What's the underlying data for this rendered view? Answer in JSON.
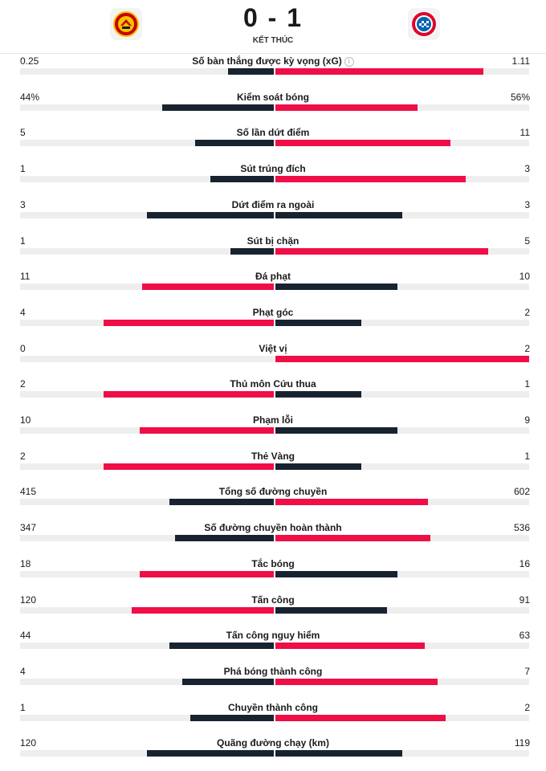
{
  "match": {
    "score": "0 - 1",
    "status": "KẾT THÚC",
    "home_color": "#c70101",
    "away_color": "#dc052d"
  },
  "colors": {
    "lead": "#ef0e46",
    "trail": "#182330",
    "track": "#eeeeee"
  },
  "stats": [
    {
      "label": "Số bàn thắng được kỳ vọng (xG)",
      "home": "0.25",
      "away": "1.11",
      "home_frac": 0.18,
      "away_frac": 0.82,
      "info": true
    },
    {
      "label": "Kiểm soát bóng",
      "home": "44%",
      "away": "56%",
      "home_frac": 0.44,
      "away_frac": 0.56
    },
    {
      "label": "Số lần dứt điểm",
      "home": "5",
      "away": "11",
      "home_frac": 0.31,
      "away_frac": 0.69
    },
    {
      "label": "Sút trúng đích",
      "home": "1",
      "away": "3",
      "home_frac": 0.25,
      "away_frac": 0.75
    },
    {
      "label": "Dứt điểm ra ngoài",
      "home": "3",
      "away": "3",
      "home_frac": 0.5,
      "away_frac": 0.5
    },
    {
      "label": "Sút bị chặn",
      "home": "1",
      "away": "5",
      "home_frac": 0.17,
      "away_frac": 0.84
    },
    {
      "label": "Đá phạt",
      "home": "11",
      "away": "10",
      "home_frac": 0.52,
      "away_frac": 0.48
    },
    {
      "label": "Phạt góc",
      "home": "4",
      "away": "2",
      "home_frac": 0.67,
      "away_frac": 0.34
    },
    {
      "label": "Việt vị",
      "home": "0",
      "away": "2",
      "home_frac": 0.0,
      "away_frac": 1.0
    },
    {
      "label": "Thủ môn Cứu thua",
      "home": "2",
      "away": "1",
      "home_frac": 0.67,
      "away_frac": 0.34
    },
    {
      "label": "Phạm lỗi",
      "home": "10",
      "away": "9",
      "home_frac": 0.53,
      "away_frac": 0.48
    },
    {
      "label": "Thẻ Vàng",
      "home": "2",
      "away": "1",
      "home_frac": 0.67,
      "away_frac": 0.34
    },
    {
      "label": "Tổng số đường chuyền",
      "home": "415",
      "away": "602",
      "home_frac": 0.41,
      "away_frac": 0.6
    },
    {
      "label": "Số đường chuyền hoàn thành",
      "home": "347",
      "away": "536",
      "home_frac": 0.39,
      "away_frac": 0.61
    },
    {
      "label": "Tắc bóng",
      "home": "18",
      "away": "16",
      "home_frac": 0.53,
      "away_frac": 0.48
    },
    {
      "label": "Tấn công",
      "home": "120",
      "away": "91",
      "home_frac": 0.56,
      "away_frac": 0.44
    },
    {
      "label": "Tấn công nguy hiểm",
      "home": "44",
      "away": "63",
      "home_frac": 0.41,
      "away_frac": 0.59
    },
    {
      "label": "Phá bóng thành công",
      "home": "4",
      "away": "7",
      "home_frac": 0.36,
      "away_frac": 0.64
    },
    {
      "label": "Chuyền thành công",
      "home": "1",
      "away": "2",
      "home_frac": 0.33,
      "away_frac": 0.67
    },
    {
      "label": "Quãng đường chạy (km)",
      "home": "120",
      "away": "119",
      "home_frac": 0.5,
      "away_frac": 0.5
    }
  ]
}
